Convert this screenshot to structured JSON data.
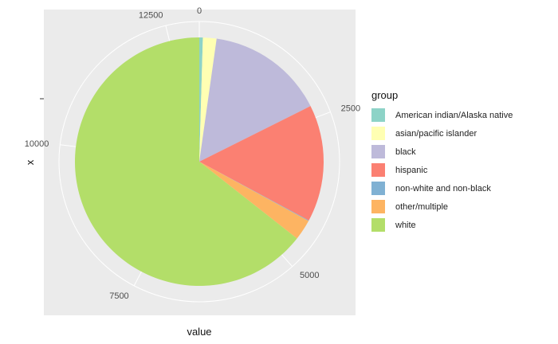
{
  "chart_data": {
    "type": "pie",
    "xlabel": "value",
    "ylabel": "x",
    "axis_ticks": [
      "0",
      "2500",
      "5000",
      "7500",
      "10000",
      "12500"
    ],
    "axis_tick_values": [
      0,
      2500,
      5000,
      7500,
      10000,
      12500
    ],
    "total": 13000,
    "legend": {
      "title": "group",
      "position": "right"
    },
    "categories": [
      "American indian/Alaska native",
      "asian/pacific islander",
      "black",
      "hispanic",
      "non-white and non-black",
      "other/multiple",
      "white"
    ],
    "colors": [
      "#8DD3C7",
      "#FFFFB3",
      "#BEBADA",
      "#FB8072",
      "#80B1D3",
      "#FDB462",
      "#B3DE69"
    ],
    "values": [
      60,
      230,
      2000,
      1980,
      10,
      350,
      8370
    ],
    "panel_background": "#EBEBEB",
    "grid": true
  }
}
